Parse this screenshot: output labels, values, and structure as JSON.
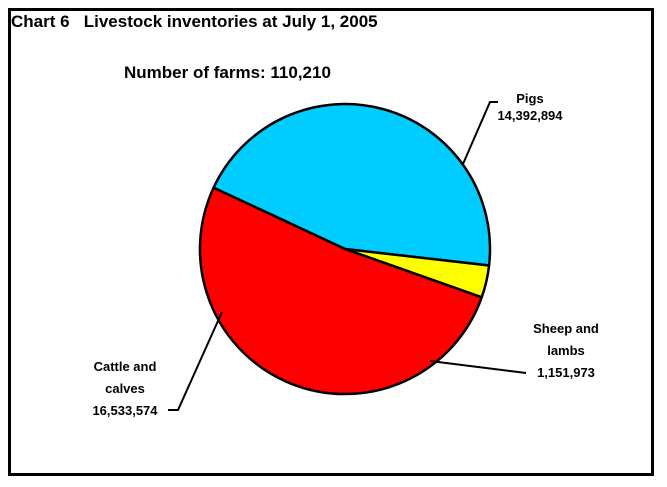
{
  "chart_data": {
    "type": "pie",
    "title": "Chart 6   Livestock inventories at July 1, 2005",
    "subtitle": "Number of farms: 110,210",
    "slices": [
      {
        "label_lines": [
          "Pigs"
        ],
        "value_text": "14,392,894",
        "value": 14392894,
        "color": "#00CCFF"
      },
      {
        "label_lines": [
          "Sheep and",
          "lambs"
        ],
        "value_text": "1,151,973",
        "value": 1151973,
        "color": "#FFFF00"
      },
      {
        "label_lines": [
          "Cattle and",
          "calves"
        ],
        "value_text": "16,533,574",
        "value": 16533574,
        "color": "#FF0000"
      }
    ]
  }
}
